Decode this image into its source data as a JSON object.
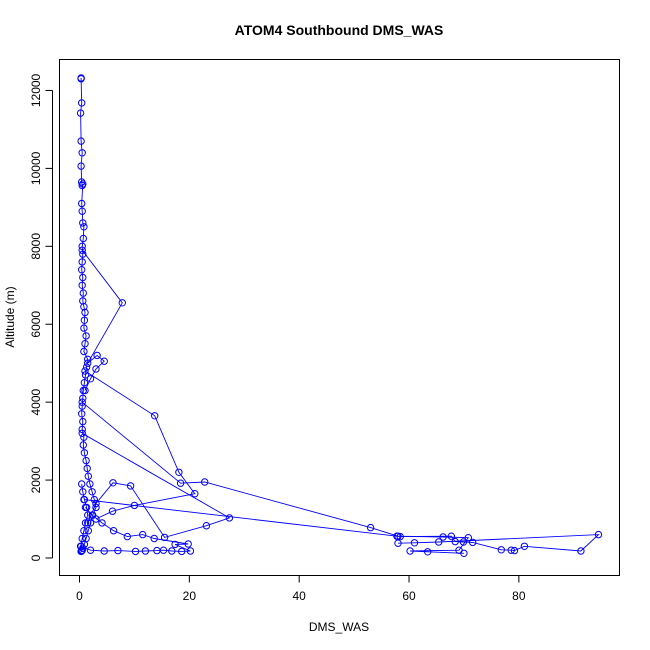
{
  "chart_data": {
    "type": "line",
    "title": "ATOM4 Southbound DMS_WAS",
    "xlabel": "DMS_WAS",
    "ylabel": "Altitude (m)",
    "xlim": [
      0,
      95
    ],
    "ylim": [
      0,
      12400
    ],
    "x_ticks": [
      0,
      20,
      40,
      60,
      80
    ],
    "y_ticks": [
      0,
      2000,
      4000,
      6000,
      8000,
      10000,
      12000
    ],
    "grid": false,
    "legend": "none",
    "colors": {
      "series": "#0000ff",
      "axis": "#000000"
    },
    "series": [
      {
        "x": [
          0.3,
          0.3,
          0.4,
          0.2,
          0.3,
          0.5,
          0.3,
          0.4,
          0.5,
          0.6,
          0.4,
          0.5,
          0.6,
          0.8,
          0.7,
          0.5,
          0.6,
          0.5,
          0.4,
          0.6,
          0.5,
          0.7,
          0.6,
          0.8,
          1.0,
          0.9,
          0.8,
          1.2,
          1.0,
          0.8,
          1.5,
          1.3,
          1.1,
          0.9,
          0.7,
          0.6,
          0.5,
          0.4,
          0.6,
          0.5,
          0.8,
          0.7,
          0.9,
          1.2,
          1.4,
          1.6,
          1.9,
          2.3,
          2.7,
          3.0,
          2.4,
          2.0,
          1.6,
          1.2,
          0.9,
          0.6,
          0.5,
          0.4,
          0.3,
          0.2,
          0.5,
          0.8,
          1.1,
          1.5,
          1.3,
          0.9,
          0.6,
          0.4
        ],
        "y": [
          12320,
          12300,
          11680,
          11420,
          10700,
          10400,
          10060,
          9650,
          9560,
          9600,
          9100,
          8900,
          8600,
          8500,
          8200,
          8000,
          7800,
          7600,
          7400,
          7200,
          7000,
          6800,
          6600,
          6450,
          6300,
          6100,
          5900,
          5700,
          5500,
          5300,
          5100,
          4900,
          4700,
          4500,
          4300,
          4100,
          3900,
          3700,
          3500,
          3300,
          3100,
          2900,
          2700,
          2500,
          2300,
          2100,
          1900,
          1700,
          1500,
          1300,
          1100,
          900,
          700,
          500,
          350,
          250,
          200,
          180,
          170,
          300,
          500,
          700,
          900,
          1100,
          1300,
          1500,
          1700,
          1900
        ]
      },
      {
        "x": [
          0.5,
          7.8,
          1.5,
          3.2,
          4.5,
          3.0,
          2.0,
          1.0
        ],
        "y": [
          7900,
          6550,
          5000,
          5200,
          5050,
          4850,
          4600,
          4300
        ]
      },
      {
        "x": [
          1.0,
          13.7,
          18.1,
          21.0,
          10.0,
          6.0,
          3.0
        ],
        "y": [
          4800,
          3650,
          2200,
          1650,
          1350,
          1200,
          1000
        ]
      },
      {
        "x": [
          0.5,
          18.4,
          22.8,
          53.0,
          58.0,
          66.2,
          70.8,
          69.1,
          60.2,
          63.4,
          70.0
        ],
        "y": [
          4000,
          1920,
          1950,
          780,
          560,
          540,
          520,
          200,
          180,
          160,
          120
        ]
      },
      {
        "x": [
          0.5,
          27.3,
          23.1,
          15.5,
          9.3,
          6.1,
          3.0,
          1.5
        ],
        "y": [
          3200,
          1030,
          830,
          530,
          1850,
          1930,
          1400,
          900
        ]
      },
      {
        "x": [
          0.8,
          57.8,
          58.4,
          67.7,
          68.4,
          69.9,
          71.6,
          76.8,
          78.6,
          79.2,
          81.0,
          91.3,
          94.5,
          65.4,
          61.0,
          58.0
        ],
        "y": [
          1500,
          560,
          550,
          560,
          420,
          410,
          400,
          210,
          200,
          190,
          300,
          180,
          600,
          410,
          390,
          380
        ]
      },
      {
        "x": [
          0.3,
          2.0,
          4.5,
          7.0,
          10.2,
          12.0,
          14.1,
          15.3,
          16.8,
          18.6,
          20.2,
          17.4,
          19.8,
          13.6,
          11.5,
          8.7,
          6.2,
          4.1,
          2.3,
          1.1
        ],
        "y": [
          300,
          200,
          180,
          190,
          170,
          180,
          190,
          200,
          180,
          170,
          180,
          350,
          360,
          500,
          600,
          550,
          700,
          900,
          1100,
          1300
        ]
      }
    ]
  }
}
